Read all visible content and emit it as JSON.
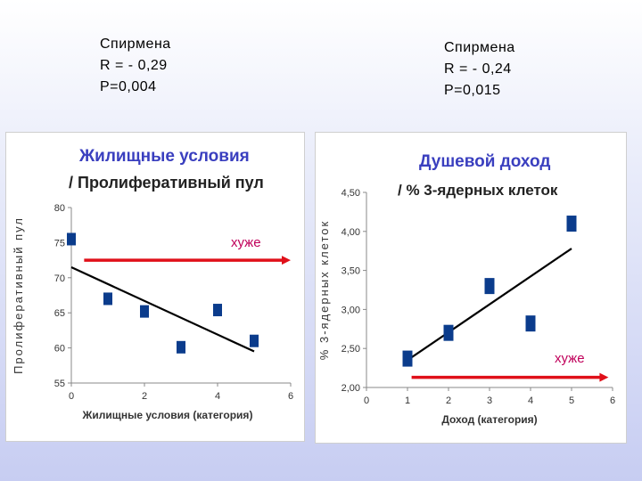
{
  "stats_left": {
    "method": "Спирмена",
    "r": "R = - 0,29",
    "p": "P=0,004"
  },
  "stats_right": {
    "method": "Спирмена",
    "r": "R = - 0,24",
    "p": "P=0,015"
  },
  "colors": {
    "marker": "#0b3c8c",
    "arrow": "#e0101a",
    "trend": "#000000",
    "title": "#3a3fbf",
    "marker_text": "#c0005a"
  },
  "chart_data": [
    {
      "type": "scatter",
      "title": "Жилищные условия",
      "subtitle": "/ Пролиферативный пул",
      "xlabel": "Жилищные условия (категория)",
      "ylabel": "Пролиферативный пул",
      "xlim": [
        0,
        6
      ],
      "ylim": [
        55,
        80
      ],
      "x_ticks": [
        "0",
        "2",
        "4",
        "6"
      ],
      "y_ticks": [
        "55",
        "60",
        "65",
        "70",
        "75",
        "80"
      ],
      "x": [
        0,
        1,
        2,
        3,
        4,
        5
      ],
      "y": [
        75.5,
        67,
        65.2,
        60.1,
        65.4,
        61
      ],
      "trend": {
        "x": [
          0,
          5
        ],
        "y": [
          71.5,
          59.5
        ]
      },
      "annotation": {
        "text": "хуже",
        "arrow_from": [
          0.35,
          72.5
        ],
        "arrow_to": [
          6,
          72.5
        ]
      },
      "grid": false,
      "legend": "none"
    },
    {
      "type": "scatter",
      "title": "Душевой доход",
      "subtitle": "/ % 3-ядерных клеток",
      "xlabel": "Доход (категория)",
      "ylabel": "% 3-ядерных клеток",
      "xlim": [
        0,
        6
      ],
      "ylim": [
        2.0,
        4.5
      ],
      "x_ticks": [
        "0",
        "1",
        "2",
        "3",
        "4",
        "5",
        "6"
      ],
      "y_ticks": [
        "2,00",
        "2,50",
        "3,00",
        "3,50",
        "4,00",
        "4,50"
      ],
      "x": [
        1,
        2,
        3,
        4,
        5
      ],
      "y": [
        2.37,
        2.7,
        3.3,
        2.82,
        4.1
      ],
      "trend": {
        "x": [
          1,
          5
        ],
        "y": [
          2.35,
          3.78
        ]
      },
      "annotation": {
        "text": "хуже",
        "arrow_from": [
          1.1,
          2.13
        ],
        "arrow_to": [
          5.9,
          2.13
        ]
      },
      "grid": false,
      "legend": "none"
    }
  ]
}
